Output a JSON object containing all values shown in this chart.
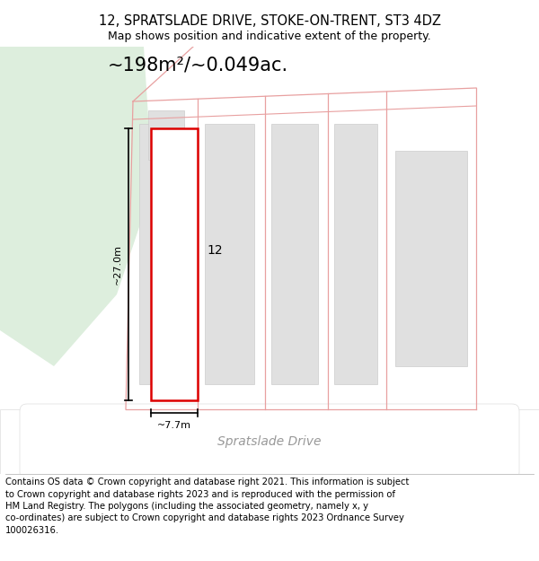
{
  "title_line1": "12, SPRATSLADE DRIVE, STOKE-ON-TRENT, ST3 4DZ",
  "title_line2": "Map shows position and indicative extent of the property.",
  "area_text": "~198m²/~0.049ac.",
  "label_12": "12",
  "dim_vertical": "~27.0m",
  "dim_horizontal": "~7.7m",
  "road_label": "Spratslade Drive",
  "footer_lines": [
    "Contains OS data © Crown copyright and database right 2021. This information is subject",
    "to Crown copyright and database rights 2023 and is reproduced with the permission of",
    "HM Land Registry. The polygons (including the associated geometry, namely x, y",
    "co-ordinates) are subject to Crown copyright and database rights 2023 Ordnance Survey",
    "100026316."
  ],
  "bg_map_color": "#f5f8f5",
  "green_patch_color": "#ddeedd",
  "plot_outline_color": "#dd0000",
  "neighbor_outline_color": "#e8a0a0",
  "building_fill": "#e0e0e0",
  "building_edge": "#cccccc",
  "road_fill": "#ffffff",
  "road_edge": "#dddddd",
  "title_fontsize": 10.5,
  "subtitle_fontsize": 9,
  "area_fontsize": 15,
  "footer_fontsize": 7.2,
  "road_label_fontsize": 10,
  "label_12_fontsize": 10,
  "dim_fontsize": 8
}
